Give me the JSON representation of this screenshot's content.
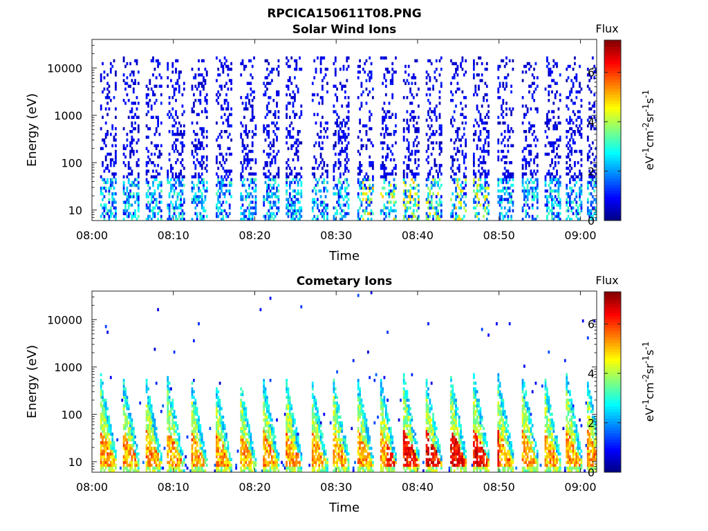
{
  "figure_title": "RPCICA150611T08.PNG",
  "chart_data": [
    {
      "type": "heatmap",
      "title": "Solar Wind Ions",
      "xlabel": "Time",
      "ylabel": "Energy (eV)",
      "y_scale": "log",
      "ylim": [
        6,
        40000
      ],
      "xlim_minutes": [
        0,
        62
      ],
      "x_ticks": [
        "08:00",
        "08:10",
        "08:20",
        "08:30",
        "08:40",
        "08:50",
        "09:00"
      ],
      "x_tick_minutes": [
        0,
        10,
        20,
        30,
        40,
        50,
        60
      ],
      "y_ticks": [
        "10",
        "100",
        "1000",
        "10000"
      ],
      "y_tick_values": [
        10,
        100,
        1000,
        10000
      ],
      "colorbar": {
        "title": "Flux",
        "unit": "eV-1cm-2sr-1s-1",
        "range": [
          0,
          7.3
        ],
        "ticks": [
          "0",
          "2",
          "4",
          "6"
        ],
        "tick_values": [
          0,
          2,
          4,
          6
        ],
        "colormap": "jet"
      },
      "pattern": "sparse",
      "sweep_start_minutes": [
        1.0,
        3.7,
        6.5,
        9.2,
        12.0,
        15.0,
        18.0,
        20.9,
        23.7,
        26.8,
        29.5,
        32.5,
        35.3,
        38.2,
        40.9,
        44.0,
        46.8,
        49.8,
        52.8,
        55.5,
        58.2,
        60.7
      ]
    },
    {
      "type": "heatmap",
      "title": "Cometary Ions",
      "xlabel": "Time",
      "ylabel": "Energy (eV)",
      "y_scale": "log",
      "ylim": [
        6,
        40000
      ],
      "xlim_minutes": [
        0,
        62
      ],
      "x_ticks": [
        "08:00",
        "08:10",
        "08:20",
        "08:30",
        "08:40",
        "08:50",
        "09:00"
      ],
      "x_tick_minutes": [
        0,
        10,
        20,
        30,
        40,
        50,
        60
      ],
      "y_ticks": [
        "10",
        "100",
        "1000",
        "10000"
      ],
      "y_tick_values": [
        10,
        100,
        1000,
        10000
      ],
      "colorbar": {
        "title": "Flux",
        "unit": "eV-1cm-2sr-1s-1",
        "range": [
          0,
          7.3
        ],
        "ticks": [
          "0",
          "2",
          "4",
          "6"
        ],
        "tick_values": [
          0,
          2,
          4,
          6
        ],
        "colormap": "jet"
      },
      "pattern": "dense-low-energy",
      "sweep_start_minutes": [
        1.0,
        3.7,
        6.5,
        9.2,
        12.0,
        15.0,
        18.0,
        20.9,
        23.7,
        26.8,
        29.5,
        32.5,
        35.3,
        38.2,
        40.9,
        44.0,
        46.8,
        49.8,
        52.8,
        55.5,
        58.2,
        60.7
      ]
    }
  ]
}
